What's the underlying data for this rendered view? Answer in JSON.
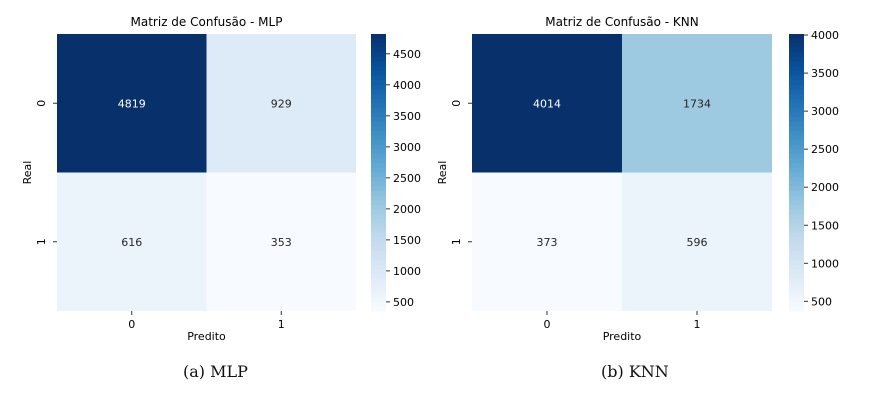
{
  "chart_data": [
    {
      "type": "heatmap",
      "title": "Matriz de Confusão - MLP",
      "xlabel": "Predito",
      "ylabel": "Real",
      "x_categories": [
        "0",
        "1"
      ],
      "y_categories": [
        "0",
        "1"
      ],
      "values": [
        [
          4819,
          929
        ],
        [
          616,
          353
        ]
      ],
      "colormap": "Blues",
      "color_range": [
        353,
        4819
      ],
      "colorbar_ticks": [
        500,
        1000,
        1500,
        2000,
        2500,
        3000,
        3500,
        4000,
        4500
      ],
      "caption": "(a) MLP"
    },
    {
      "type": "heatmap",
      "title": "Matriz de Confusão - KNN",
      "xlabel": "Predito",
      "ylabel": "Real",
      "x_categories": [
        "0",
        "1"
      ],
      "y_categories": [
        "0",
        "1"
      ],
      "values": [
        [
          4014,
          1734
        ],
        [
          373,
          596
        ]
      ],
      "colormap": "Blues",
      "color_range": [
        373,
        4014
      ],
      "colorbar_ticks": [
        500,
        1000,
        1500,
        2000,
        2500,
        3000,
        3500,
        4000
      ],
      "caption": "(b) KNN"
    }
  ]
}
